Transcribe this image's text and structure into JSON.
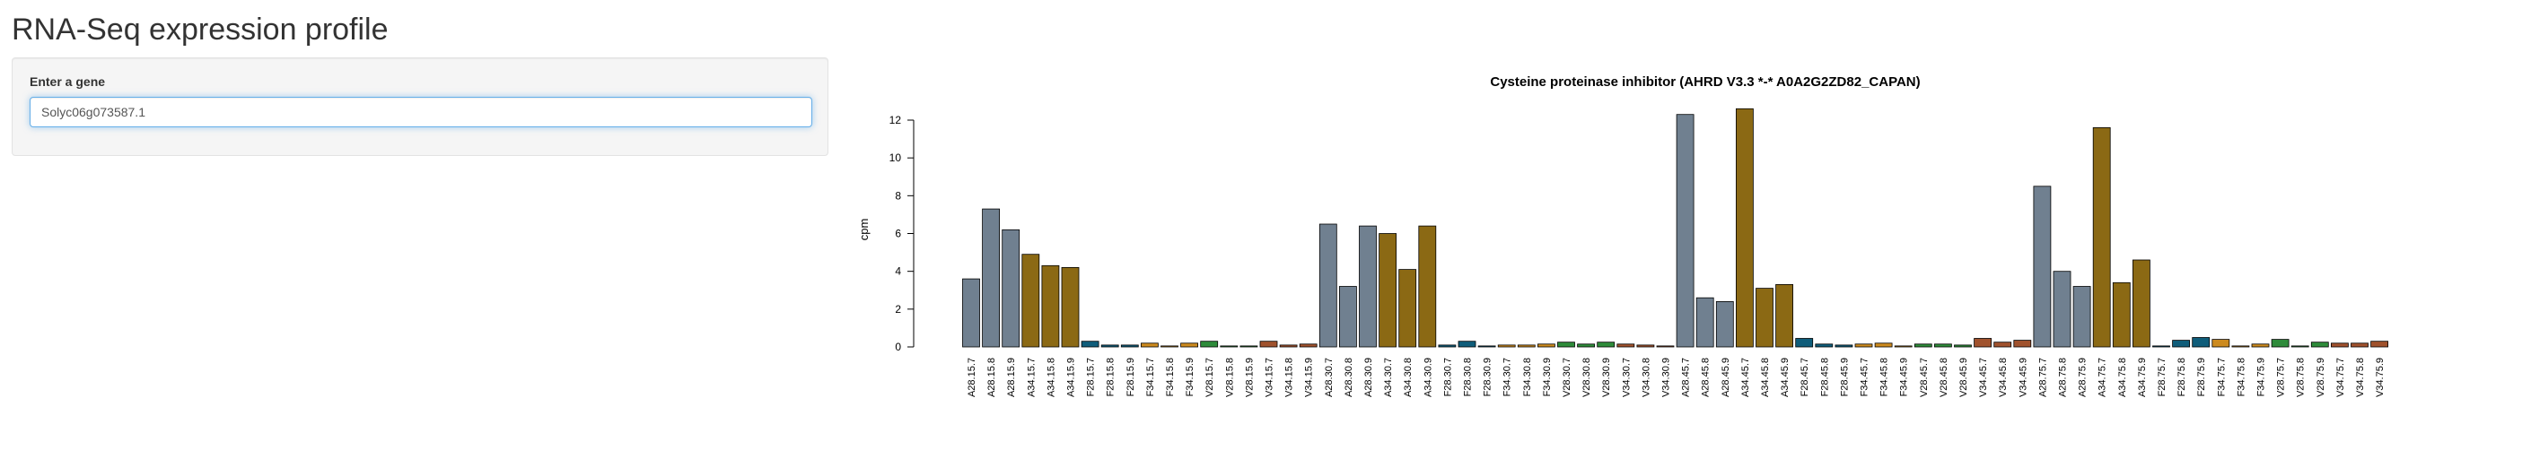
{
  "page": {
    "title": "RNA-Seq expression profile"
  },
  "gene_input": {
    "label": "Enter a gene",
    "value": "Solyc06g073587.1"
  },
  "colors": {
    "slate": "#708090",
    "goldenrod": "#8b6914",
    "teal": "#0f5d7a",
    "orange": "#cc8a1e",
    "green": "#2e8b3a",
    "brown": "#a0522d"
  },
  "chart_data": {
    "type": "bar",
    "title": "Cysteine proteinase inhibitor (AHRD V3.3 *-* A0A2G2ZD82_CAPAN)",
    "xlabel": "",
    "ylabel": "cpm",
    "ylim": [
      0,
      12
    ],
    "yticks": [
      0,
      2,
      4,
      6,
      8,
      10,
      12
    ],
    "grid": false,
    "legend": "none",
    "categories": [
      "A28.15.7",
      "A28.15.8",
      "A28.15.9",
      "A34.15.7",
      "A34.15.8",
      "A34.15.9",
      "F28.15.7",
      "F28.15.8",
      "F28.15.9",
      "F34.15.7",
      "F34.15.8",
      "F34.15.9",
      "V28.15.7",
      "V28.15.8",
      "V28.15.9",
      "V34.15.7",
      "V34.15.8",
      "V34.15.9",
      "A28.30.7",
      "A28.30.8",
      "A28.30.9",
      "A34.30.7",
      "A34.30.8",
      "A34.30.9",
      "F28.30.7",
      "F28.30.8",
      "F28.30.9",
      "F34.30.7",
      "F34.30.8",
      "F34.30.9",
      "V28.30.7",
      "V28.30.8",
      "V28.30.9",
      "V34.30.7",
      "V34.30.8",
      "V34.30.9",
      "A28.45.7",
      "A28.45.8",
      "A28.45.9",
      "A34.45.7",
      "A34.45.8",
      "A34.45.9",
      "F28.45.7",
      "F28.45.8",
      "F28.45.9",
      "F34.45.7",
      "F34.45.8",
      "F34.45.9",
      "V28.45.7",
      "V28.45.8",
      "V28.45.9",
      "V34.45.7",
      "V34.45.8",
      "V34.45.9",
      "A28.75.7",
      "A28.75.8",
      "A28.75.9",
      "A34.75.7",
      "A34.75.8",
      "A34.75.9",
      "F28.75.7",
      "F28.75.8",
      "F28.75.9",
      "F34.75.7",
      "F34.75.8",
      "F34.75.9",
      "V28.75.7",
      "V28.75.8",
      "V28.75.9",
      "V34.75.7",
      "V34.75.8",
      "V34.75.9"
    ],
    "values": [
      3.6,
      7.3,
      6.2,
      4.9,
      4.3,
      4.2,
      0.3,
      0.1,
      0.1,
      0.2,
      0.05,
      0.2,
      0.3,
      0.05,
      0.05,
      0.3,
      0.1,
      0.15,
      6.5,
      3.2,
      6.4,
      6.0,
      4.1,
      6.4,
      0.1,
      0.3,
      0.05,
      0.1,
      0.1,
      0.15,
      0.25,
      0.15,
      0.25,
      0.15,
      0.1,
      0.05,
      12.3,
      2.6,
      2.4,
      12.6,
      3.1,
      3.3,
      0.45,
      0.15,
      0.1,
      0.15,
      0.2,
      0.05,
      0.15,
      0.15,
      0.1,
      0.45,
      0.25,
      0.35,
      8.5,
      4.0,
      3.2,
      11.6,
      3.4,
      4.6,
      0.05,
      0.35,
      0.5,
      0.4,
      0.05,
      0.15,
      0.4,
      0.05,
      0.25,
      0.2,
      0.2,
      0.3
    ],
    "bar_colors": [
      "slate",
      "slate",
      "slate",
      "goldenrod",
      "goldenrod",
      "goldenrod",
      "teal",
      "teal",
      "teal",
      "orange",
      "orange",
      "orange",
      "green",
      "green",
      "green",
      "brown",
      "brown",
      "brown",
      "slate",
      "slate",
      "slate",
      "goldenrod",
      "goldenrod",
      "goldenrod",
      "teal",
      "teal",
      "teal",
      "orange",
      "orange",
      "orange",
      "green",
      "green",
      "green",
      "brown",
      "brown",
      "brown",
      "slate",
      "slate",
      "slate",
      "goldenrod",
      "goldenrod",
      "goldenrod",
      "teal",
      "teal",
      "teal",
      "orange",
      "orange",
      "orange",
      "green",
      "green",
      "green",
      "brown",
      "brown",
      "brown",
      "slate",
      "slate",
      "slate",
      "goldenrod",
      "goldenrod",
      "goldenrod",
      "teal",
      "teal",
      "teal",
      "orange",
      "orange",
      "orange",
      "green",
      "green",
      "green",
      "brown",
      "brown",
      "brown"
    ]
  }
}
